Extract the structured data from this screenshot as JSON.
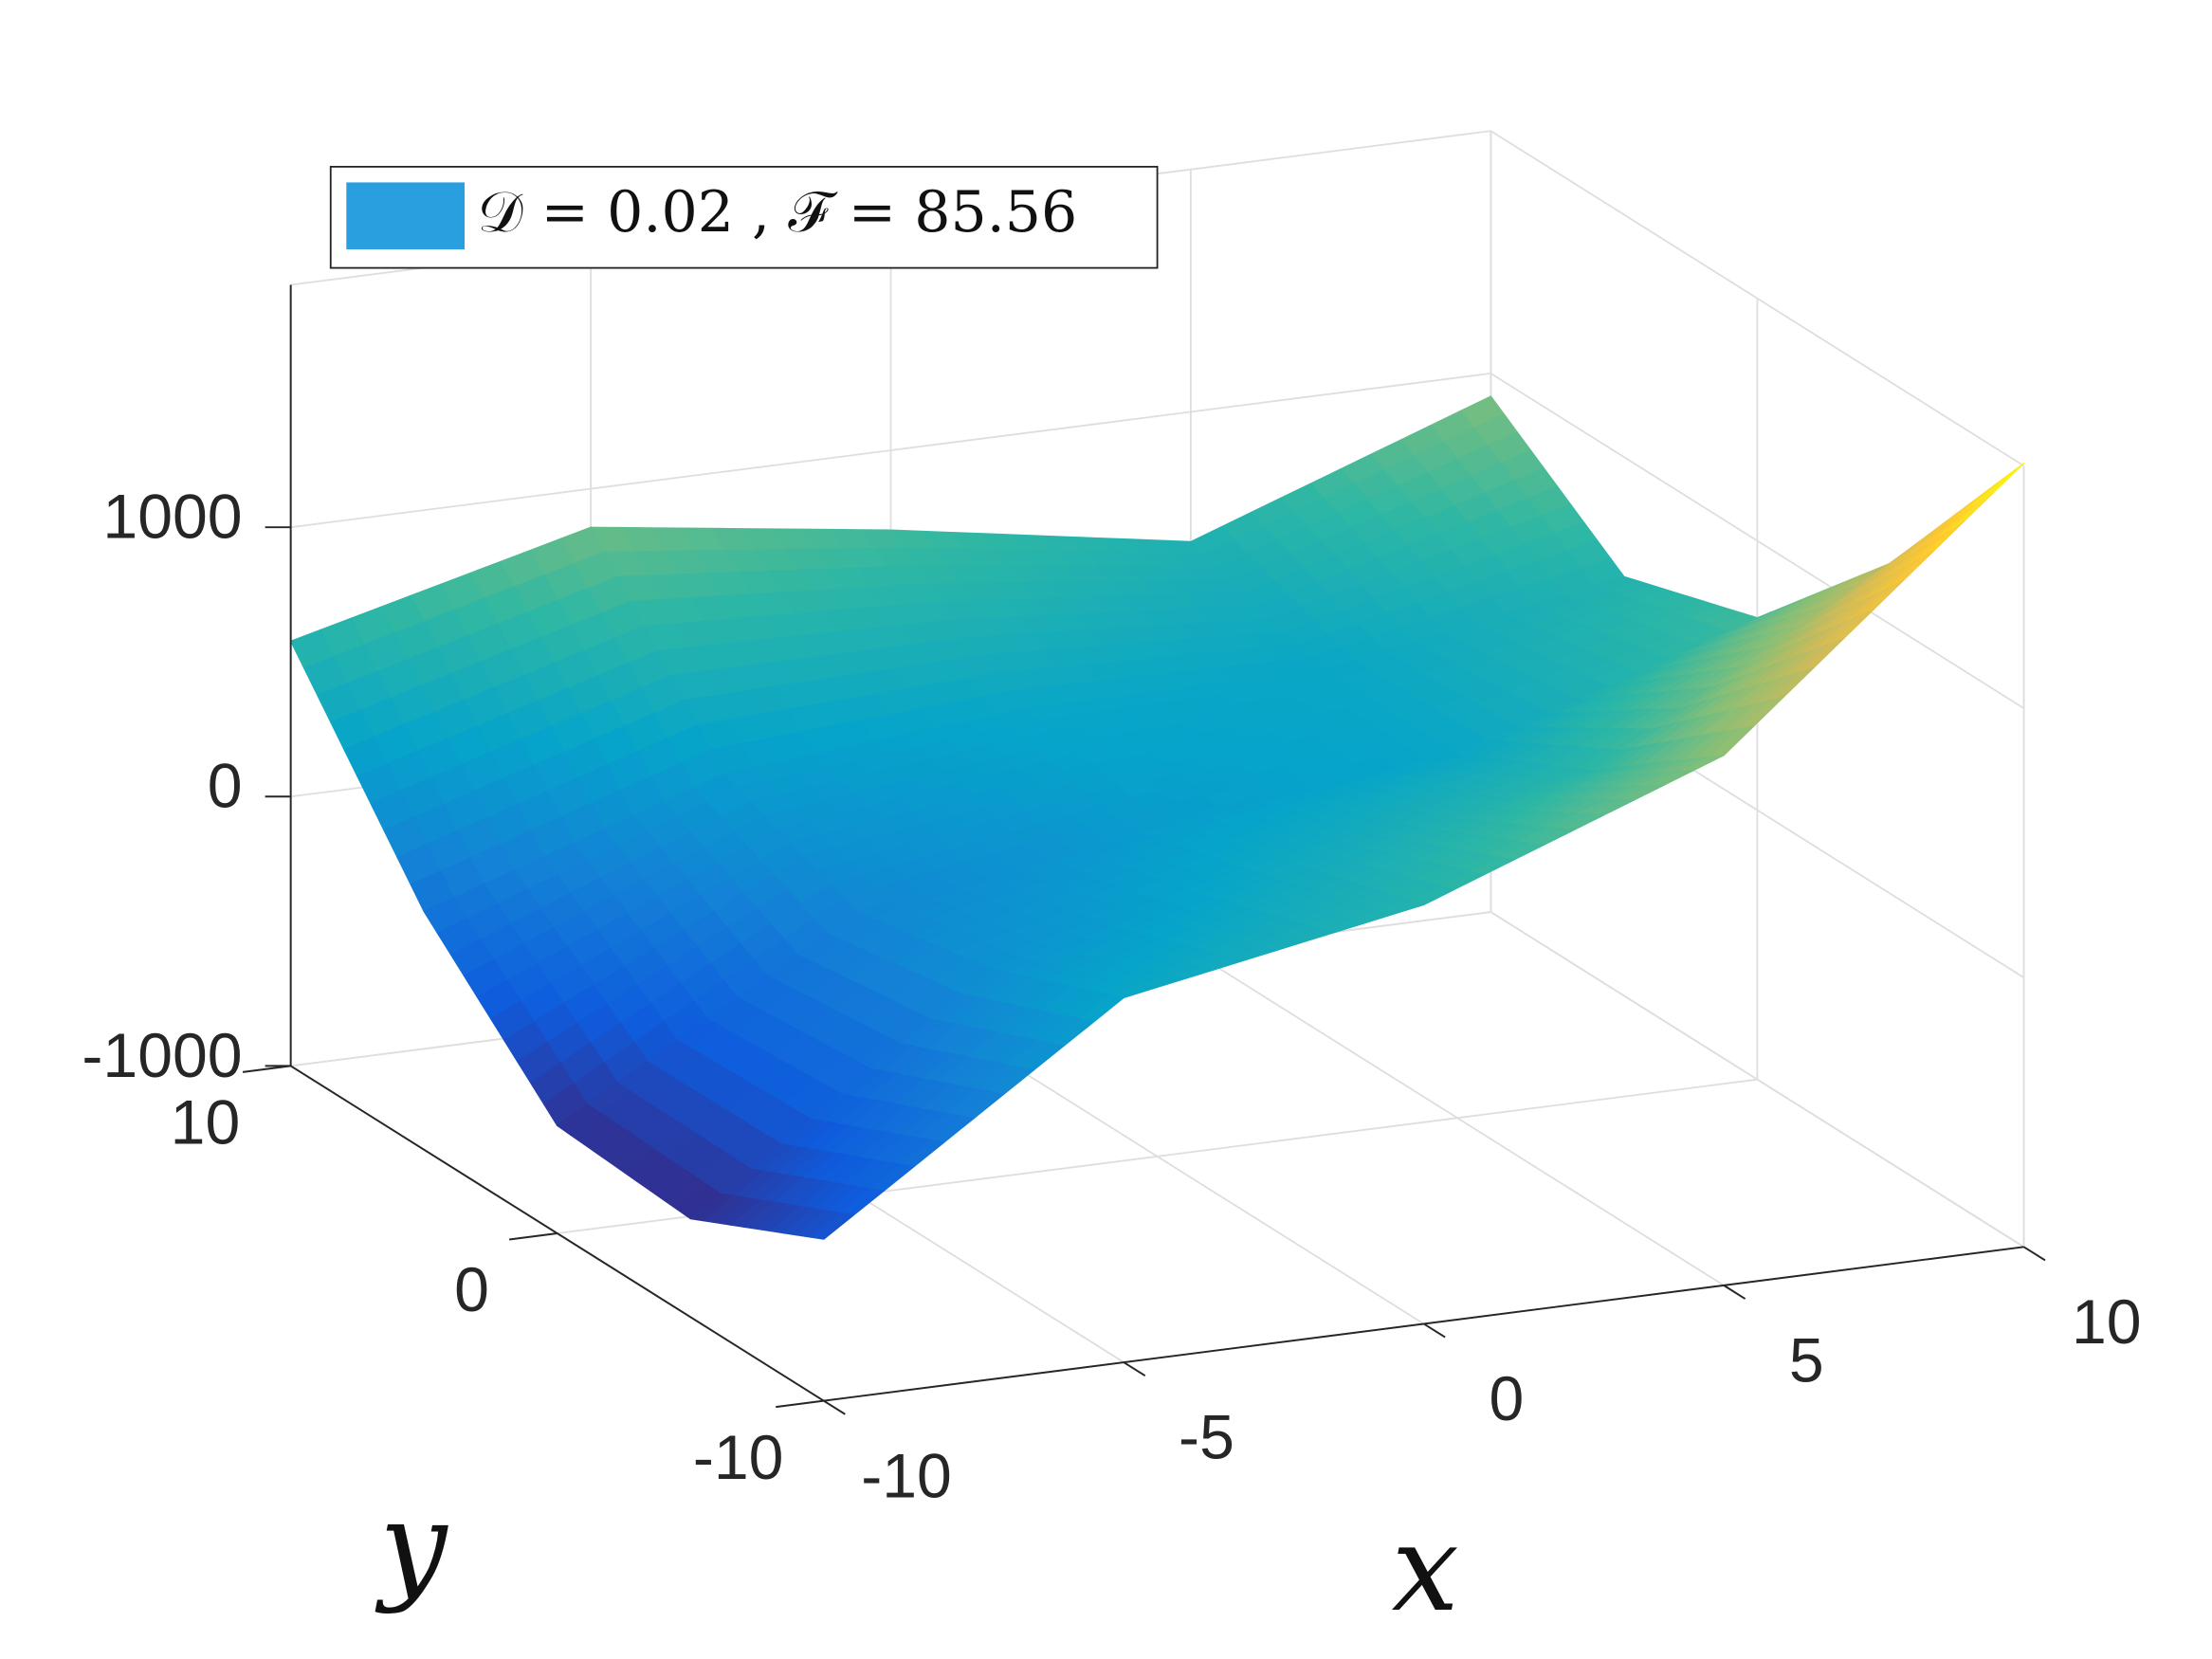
{
  "chart_data": {
    "type": "surface",
    "x_label": "x",
    "y_label": "y",
    "x": [
      -10,
      -5,
      0,
      5,
      10
    ],
    "y": [
      10,
      5,
      0,
      -5,
      -10
    ],
    "series": [
      {
        "name": "𝒟 = 0.02 ,  ℱ = 85.56",
        "color": "#2a9fe0",
        "z": [
          [
            577,
            857,
            704,
            518,
            915
          ],
          [
            -116,
            250,
            350,
            350,
            556
          ],
          [
            -600,
            50,
            250,
            350,
            714
          ],
          [
            -635,
            150,
            400,
            600,
            1228
          ],
          [
            -400,
            354,
            556,
            968,
            1910
          ]
        ]
      }
    ],
    "colormap": [
      "#352a87",
      "#0f5cdd",
      "#1481d6",
      "#06a4ca",
      "#2eb7a4",
      "#87bf77",
      "#d1bb59",
      "#fec832",
      "#f9fb0e"
    ],
    "xlim": [
      -10,
      10
    ],
    "ylim": [
      -10,
      10
    ],
    "zlim": [
      -1000,
      1900
    ],
    "xticks": [
      -10,
      -5,
      0,
      5,
      10
    ],
    "yticks": [
      -10,
      0,
      10
    ],
    "zticks": [
      -1000,
      0,
      1000
    ],
    "grid": true,
    "legend": "upper left"
  }
}
